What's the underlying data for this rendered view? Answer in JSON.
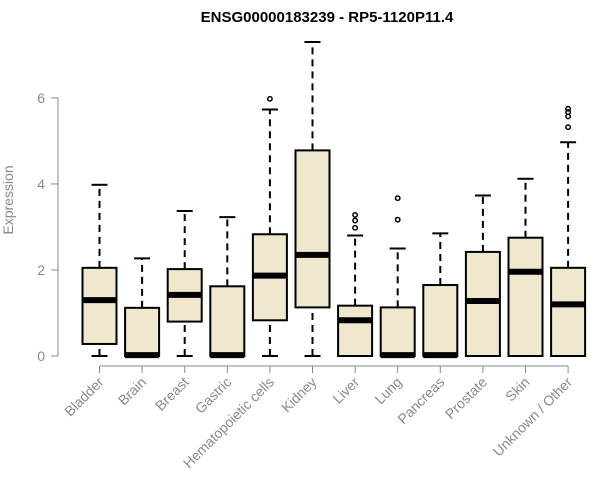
{
  "chart_data": {
    "type": "boxplot",
    "title": "ENSG00000183239 - RP5-1120P11.4",
    "xlabel": "",
    "ylabel": "Expression",
    "ylim": [
      0,
      7.3
    ],
    "yticks": [
      0,
      2,
      4,
      6
    ],
    "box_fill": "#efe8cf",
    "categories": [
      "Bladder",
      "Brain",
      "Breast",
      "Gastric",
      "Hematopoietic cells",
      "Kidney",
      "Liver",
      "Lung",
      "Pancreas",
      "Prostate",
      "Skin",
      "Unknown / Other"
    ],
    "boxes": [
      {
        "min": 0,
        "q1": 0.28,
        "median": 1.3,
        "q3": 2.05,
        "max": 3.98,
        "outliers": []
      },
      {
        "min": 0,
        "q1": 0,
        "median": 0.02,
        "q3": 1.12,
        "max": 2.27,
        "outliers": []
      },
      {
        "min": 0,
        "q1": 0.8,
        "median": 1.42,
        "q3": 2.02,
        "max": 3.37,
        "outliers": []
      },
      {
        "min": 0,
        "q1": 0,
        "median": 0.02,
        "q3": 1.62,
        "max": 3.23,
        "outliers": []
      },
      {
        "min": 0,
        "q1": 0.83,
        "median": 1.87,
        "q3": 2.83,
        "max": 5.73,
        "outliers": [
          5.98
        ]
      },
      {
        "min": 0,
        "q1": 1.13,
        "median": 2.35,
        "q3": 4.78,
        "max": 7.3,
        "outliers": []
      },
      {
        "min": 0,
        "q1": 0,
        "median": 0.83,
        "q3": 1.17,
        "max": 2.8,
        "outliers": [
          2.98,
          3.15,
          3.28
        ]
      },
      {
        "min": 0,
        "q1": 0,
        "median": 0.02,
        "q3": 1.13,
        "max": 2.5,
        "outliers": [
          3.17,
          3.67
        ]
      },
      {
        "min": 0,
        "q1": 0,
        "median": 0.02,
        "q3": 1.65,
        "max": 2.85,
        "outliers": []
      },
      {
        "min": 0,
        "q1": 0,
        "median": 1.28,
        "q3": 2.42,
        "max": 3.73,
        "outliers": []
      },
      {
        "min": 0,
        "q1": 0,
        "median": 1.96,
        "q3": 2.75,
        "max": 4.12,
        "outliers": []
      },
      {
        "min": 0,
        "q1": 0,
        "median": 1.2,
        "q3": 2.05,
        "max": 4.97,
        "outliers": [
          5.32,
          5.57,
          5.67,
          5.75
        ]
      }
    ]
  }
}
